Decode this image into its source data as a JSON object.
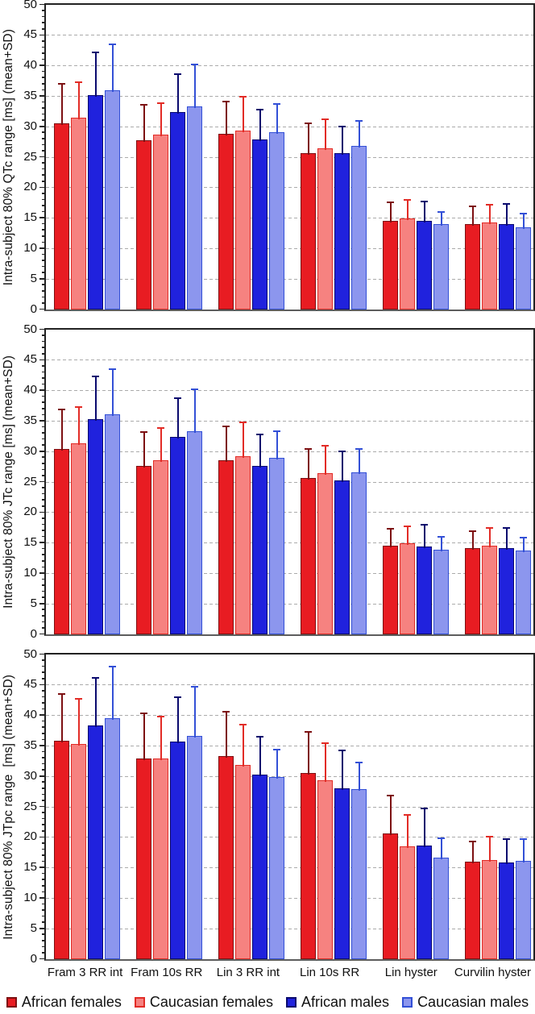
{
  "figure": {
    "ylim": [
      0,
      50
    ],
    "yticks": [
      0,
      5,
      10,
      15,
      20,
      25,
      30,
      35,
      40,
      45,
      50
    ],
    "categories": [
      "Fram 3 RR int",
      "Fram 10s RR",
      "Lin 3 RR int",
      "Lin 10s RR",
      "Lin hyster",
      "Curvilin hyster"
    ],
    "series_names": [
      "African females",
      "Caucasian females",
      "African males",
      "Caucasian males"
    ],
    "colors": {
      "African females": {
        "fill": "#e81c22",
        "border": "#7d1012",
        "error": "#7d1012"
      },
      "Caucasian females": {
        "fill": "#f68280",
        "border": "#e22c26",
        "error": "#e22c26"
      },
      "African males": {
        "fill": "#2022dd",
        "border": "#0a0a6e",
        "error": "#0a0a6e"
      },
      "Caucasian males": {
        "fill": "#8c96ee",
        "border": "#3350d6",
        "error": "#3350d6"
      }
    },
    "grid_color": "#ababab",
    "legend_position": "bottom",
    "error_bar_style": "mean+SD upper whisker with cap"
  },
  "chart_data": [
    {
      "type": "bar",
      "ylabel": "Intra-subject 80% QTc range [ms] (mean+SD)",
      "ylim": [
        0,
        50
      ],
      "grid": true,
      "categories": [
        "Fram 3 RR int",
        "Fram 10s RR",
        "Lin 3 RR int",
        "Lin 10s RR",
        "Lin hyster",
        "Curvilin hyster"
      ],
      "series": [
        {
          "name": "African females",
          "means": [
            30.6,
            27.8,
            28.8,
            25.7,
            14.6,
            14.0
          ],
          "err_tops": [
            37.2,
            33.7,
            34.3,
            30.7,
            17.7,
            17.0
          ]
        },
        {
          "name": "Caucasian females",
          "means": [
            31.5,
            28.7,
            29.4,
            26.5,
            15.0,
            14.3
          ],
          "err_tops": [
            37.5,
            34.0,
            35.0,
            31.3,
            18.1,
            17.3
          ]
        },
        {
          "name": "African males",
          "means": [
            35.2,
            32.4,
            27.9,
            25.6,
            14.5,
            14.0
          ],
          "err_tops": [
            42.3,
            38.8,
            33.0,
            30.2,
            17.9,
            17.4
          ]
        },
        {
          "name": "Caucasian males",
          "means": [
            36.0,
            33.3,
            29.1,
            26.8,
            14.0,
            13.5
          ],
          "err_tops": [
            43.7,
            40.4,
            33.8,
            31.1,
            16.2,
            15.9
          ]
        }
      ]
    },
    {
      "type": "bar",
      "ylabel": "Intra-subject 80% JTc range [ms] (mean+SD)",
      "ylim": [
        0,
        50
      ],
      "grid": true,
      "categories": [
        "Fram 3 RR int",
        "Fram 10s RR",
        "Lin 3 RR int",
        "Lin 10s RR",
        "Lin hyster",
        "Curvilin hyster"
      ],
      "series": [
        {
          "name": "African females",
          "means": [
            30.4,
            27.7,
            28.6,
            25.6,
            14.5,
            14.1
          ],
          "err_tops": [
            37.0,
            33.4,
            34.2,
            30.6,
            17.4,
            17.0
          ]
        },
        {
          "name": "Caucasian females",
          "means": [
            31.4,
            28.6,
            29.3,
            26.4,
            14.9,
            14.5
          ],
          "err_tops": [
            37.4,
            34.0,
            34.9,
            31.1,
            17.9,
            17.6
          ]
        },
        {
          "name": "African males",
          "means": [
            35.3,
            32.4,
            27.7,
            25.3,
            14.4,
            14.1
          ],
          "err_tops": [
            42.4,
            38.9,
            33.0,
            30.2,
            18.1,
            17.6
          ]
        },
        {
          "name": "Caucasian males",
          "means": [
            36.1,
            33.3,
            29.0,
            26.6,
            13.9,
            13.7
          ],
          "err_tops": [
            43.7,
            40.4,
            33.5,
            30.6,
            16.2,
            16.0
          ]
        }
      ]
    },
    {
      "type": "bar",
      "ylabel": "Intra-subject 80% JTpc range  [ms] (mean+SD)",
      "ylim": [
        0,
        50
      ],
      "grid": true,
      "categories": [
        "Fram 3 RR int",
        "Fram 10s RR",
        "Lin 3 RR int",
        "Lin 10s RR",
        "Lin hyster",
        "Curvilin hyster"
      ],
      "series": [
        {
          "name": "African females",
          "means": [
            35.8,
            33.0,
            33.4,
            30.5,
            20.7,
            16.0
          ],
          "err_tops": [
            43.7,
            40.5,
            40.7,
            37.4,
            27.0,
            19.5
          ]
        },
        {
          "name": "Caucasian females",
          "means": [
            35.3,
            32.9,
            31.9,
            29.4,
            18.5,
            16.3
          ],
          "err_tops": [
            42.8,
            40.0,
            38.6,
            35.6,
            23.8,
            20.3
          ]
        },
        {
          "name": "African males",
          "means": [
            38.4,
            35.7,
            30.3,
            28.1,
            18.6,
            15.9
          ],
          "err_tops": [
            46.3,
            43.1,
            36.7,
            34.4,
            24.9,
            19.8
          ]
        },
        {
          "name": "Caucasian males",
          "means": [
            39.5,
            36.7,
            29.9,
            27.9,
            16.7,
            16.1
          ],
          "err_tops": [
            48.2,
            44.9,
            34.5,
            32.4,
            20.0,
            19.8
          ]
        }
      ]
    }
  ],
  "legend": {
    "entries": [
      "African females",
      "Caucasian females",
      "African males",
      "Caucasian males"
    ]
  }
}
